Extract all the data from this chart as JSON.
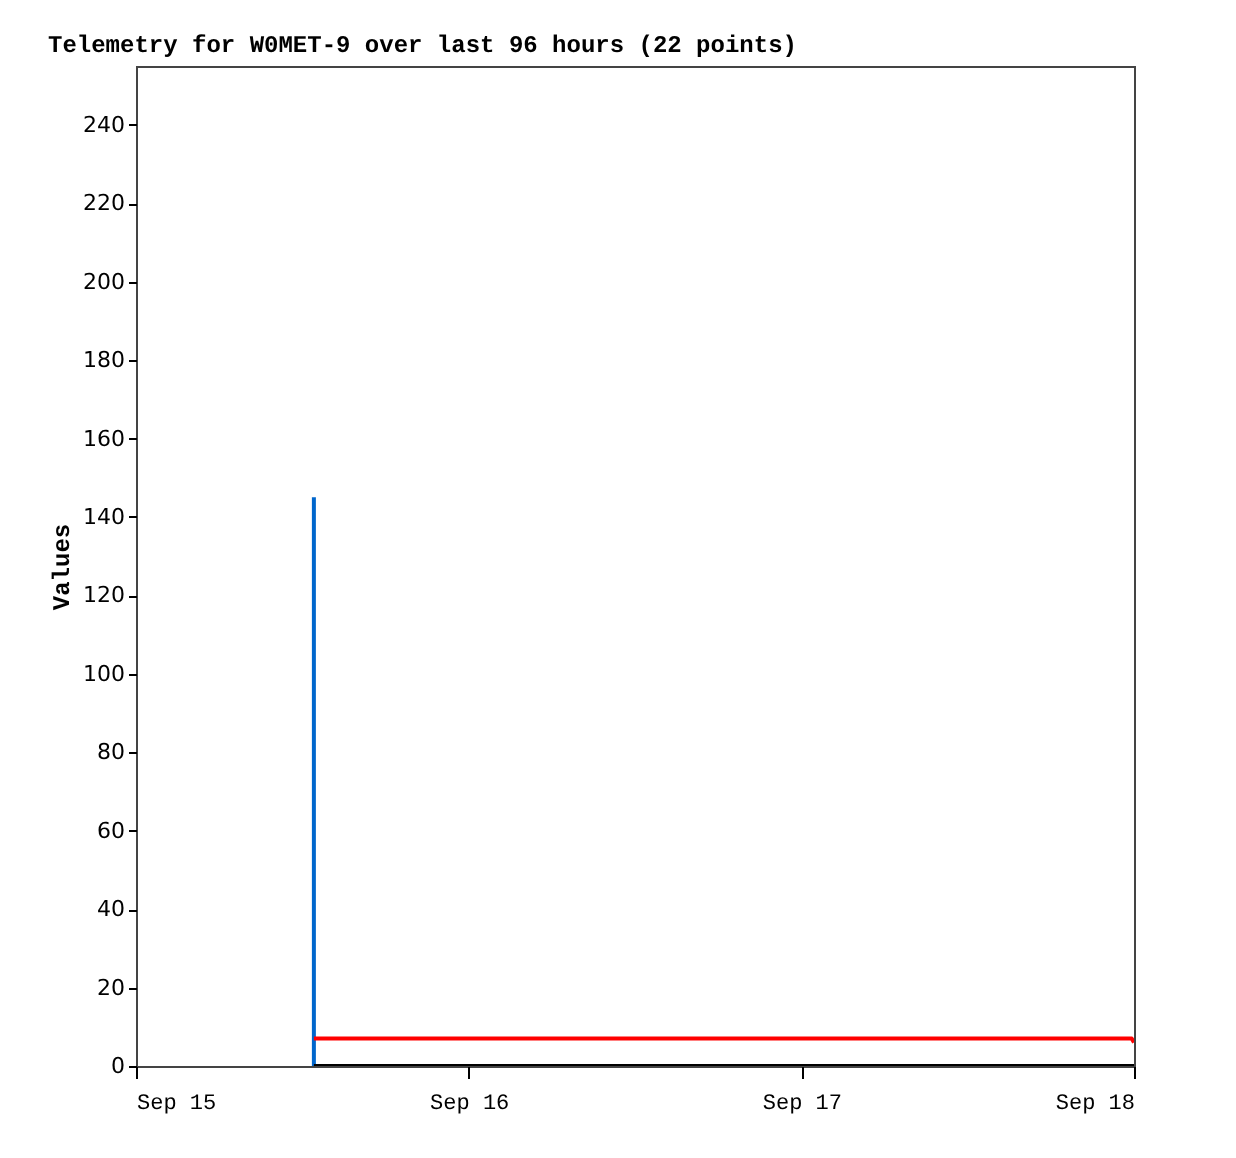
{
  "chart_data": {
    "type": "line",
    "title": "Telemetry for W0MET-9 over last 96 hours (22 points)",
    "ylabel": "Values",
    "xlim": [
      "--09-15",
      "--09-18"
    ],
    "xticks": [
      {
        "value": "--09-15",
        "label": "Sep 15"
      },
      {
        "value": "--09-16",
        "label": "Sep 16"
      },
      {
        "value": "--09-17",
        "label": "Sep 17"
      },
      {
        "value": "--09-18",
        "label": "Sep 18"
      }
    ],
    "ylim": [
      0,
      255
    ],
    "yticks": [
      0,
      20,
      40,
      60,
      80,
      100,
      120,
      140,
      160,
      180,
      200,
      220,
      240
    ],
    "grid": false,
    "marker": "none",
    "line_style": "solid",
    "series": [
      {
        "color": "#0066cc",
        "x": [
          "--09-15T12:50",
          "--09-15T12:50"
        ],
        "values": [
          0,
          145
        ]
      },
      {
        "color": "#ff0000",
        "x": [
          "--09-15T12:50",
          "--09-17T23:50",
          "--09-18"
        ],
        "values": [
          7,
          7,
          6
        ]
      },
      {
        "color": "#000000",
        "x": [
          "--09-15T12:50",
          "--09-18"
        ],
        "values": [
          0,
          0
        ]
      }
    ]
  }
}
